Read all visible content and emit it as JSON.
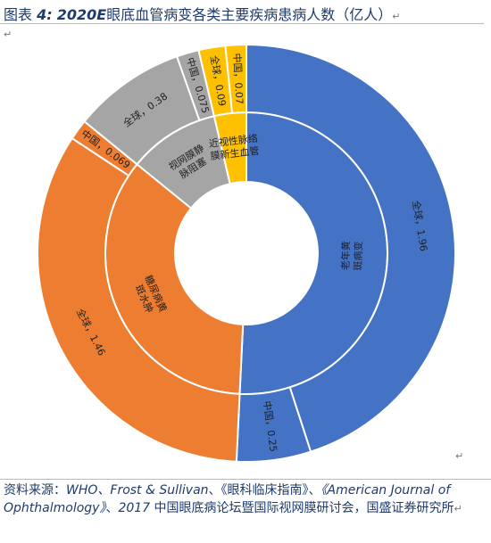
{
  "title": {
    "prefix": "图表",
    "number": "4:",
    "year": "2020E",
    "text": "眼底血管病变各类主要疾病患病人数（亿人）"
  },
  "source": {
    "label": "资料来源：",
    "who_frost": "WHO、Frost & Sullivan",
    "sep1": "、",
    "guide": "《眼科临床指南》",
    "sep2": "、",
    "journal": "《American Journal of Ophthalmology》",
    "sep3": "、",
    "year": "2017",
    "tail": " 中国眼底病论坛暨国际视网膜研讨会，国盛证券研究所"
  },
  "colors": {
    "amd": "#4472c4",
    "dme": "#ed7d31",
    "rvo": "#a5a5a5",
    "cnv": "#ffc000",
    "ring_border": "#ffffff"
  },
  "chart_data": {
    "type": "sunburst",
    "unit": "亿人",
    "inner_ring": [
      {
        "key": "amd",
        "label": "老年黄斑病变",
        "value": 2.21
      },
      {
        "key": "dme",
        "label": "糖尿病黄斑水肿",
        "value": 1.529
      },
      {
        "key": "rvo",
        "label": "视网膜静脉阻塞",
        "value": 0.455
      },
      {
        "key": "cnv",
        "label": "近视性脉络膜新生血管",
        "value": 0.16
      }
    ],
    "outer_ring": [
      {
        "parent": "amd",
        "label": "全球，1.96",
        "value": 1.96
      },
      {
        "parent": "amd",
        "label": "中国，0.25",
        "value": 0.25
      },
      {
        "parent": "dme",
        "label": "全球，1.46",
        "value": 1.46
      },
      {
        "parent": "dme",
        "label": "中国，0.069",
        "value": 0.069
      },
      {
        "parent": "rvo",
        "label": "全球，0.38",
        "value": 0.38
      },
      {
        "parent": "rvo",
        "label": "中国，0.075",
        "value": 0.075
      },
      {
        "parent": "cnv",
        "label": "全球，0.09",
        "value": 0.09
      },
      {
        "parent": "cnv",
        "label": "中国，0.07",
        "value": 0.07
      }
    ]
  }
}
